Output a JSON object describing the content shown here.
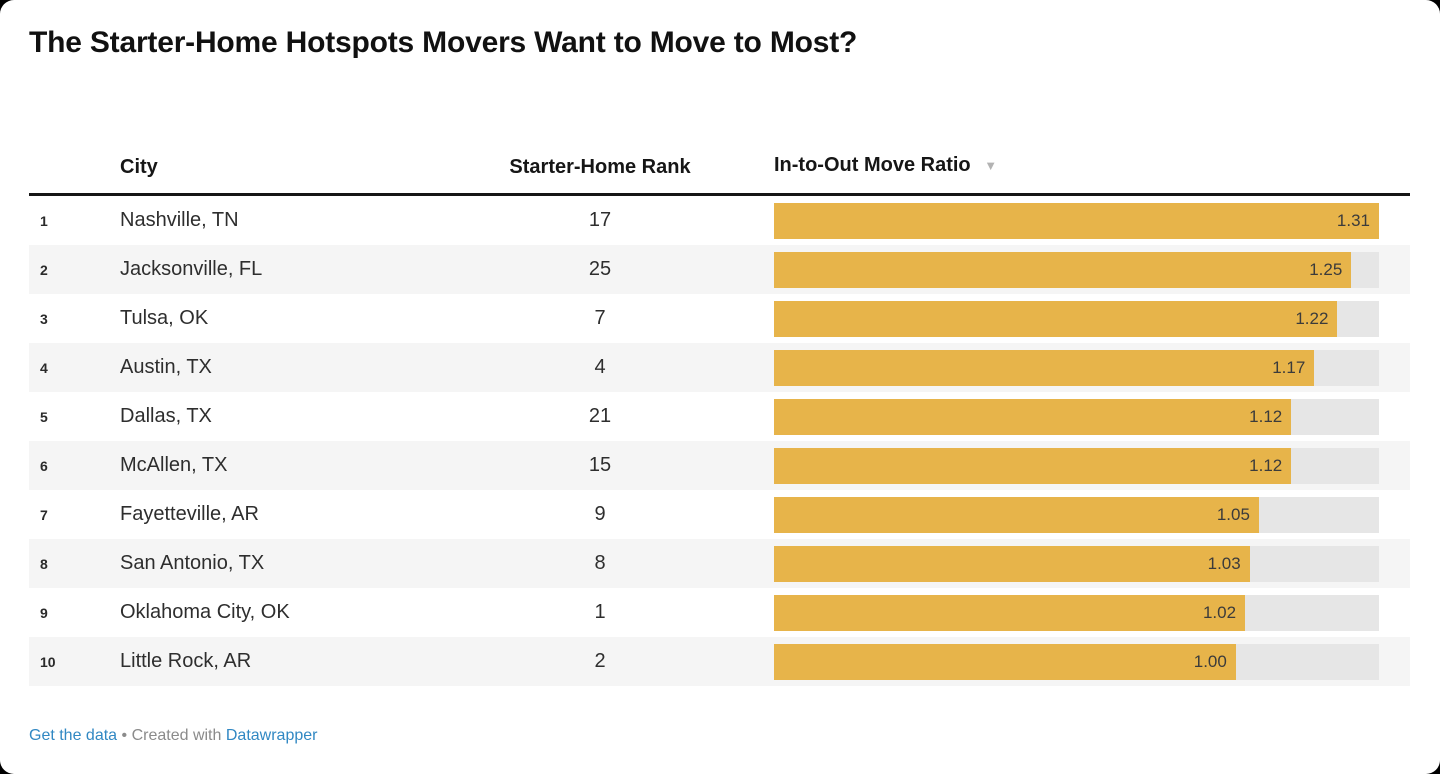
{
  "title": "The Starter-Home Hotspots Movers Want to Move to Most?",
  "table": {
    "columns": {
      "rank": "",
      "city": "City",
      "starter_home_rank": "Starter-Home Rank",
      "ratio": "In-to-Out Move Ratio"
    },
    "sort_icon": "▼",
    "sorted_by": "In-to-Out Move Ratio",
    "sort_direction": "descending"
  },
  "chart_data": {
    "type": "bar",
    "title": "The Starter-Home Hotspots Movers Want to Move to Most?",
    "orientation": "horizontal",
    "xlim": [
      0,
      1.31
    ],
    "value_label_position": "inside-end",
    "categories": [
      "Nashville, TN",
      "Jacksonville, FL",
      "Tulsa, OK",
      "Austin, TX",
      "Dallas, TX",
      "McAllen, TX",
      "Fayetteville, AR",
      "San Antonio, TX",
      "Oklahoma City, OK",
      "Little Rock, AR"
    ],
    "rows": [
      {
        "rank": 1,
        "city": "Nashville, TN",
        "starter_home_rank": 17,
        "ratio": 1.31
      },
      {
        "rank": 2,
        "city": "Jacksonville, FL",
        "starter_home_rank": 25,
        "ratio": 1.25
      },
      {
        "rank": 3,
        "city": "Tulsa, OK",
        "starter_home_rank": 7,
        "ratio": 1.22
      },
      {
        "rank": 4,
        "city": "Austin, TX",
        "starter_home_rank": 4,
        "ratio": 1.17
      },
      {
        "rank": 5,
        "city": "Dallas, TX",
        "starter_home_rank": 21,
        "ratio": 1.12
      },
      {
        "rank": 6,
        "city": "McAllen, TX",
        "starter_home_rank": 15,
        "ratio": 1.12
      },
      {
        "rank": 7,
        "city": "Fayetteville, AR",
        "starter_home_rank": 9,
        "ratio": 1.05
      },
      {
        "rank": 8,
        "city": "San Antonio, TX",
        "starter_home_rank": 8,
        "ratio": 1.03
      },
      {
        "rank": 9,
        "city": "Oklahoma City, OK",
        "starter_home_rank": 1,
        "ratio": 1.02
      },
      {
        "rank": 10,
        "city": "Little Rock, AR",
        "starter_home_rank": 2,
        "ratio": 1.0
      }
    ]
  },
  "colors": {
    "bar": "#E7B44A",
    "bar_track": "#E6E6E6",
    "alt_row": "#F5F5F5",
    "link": "#3188C3",
    "muted_text": "#8B8B8B",
    "header_rule": "#161616"
  },
  "footer": {
    "get_data_label": "Get the data",
    "separator": "•",
    "created_with": "Created with",
    "brand": "Datawrapper"
  }
}
